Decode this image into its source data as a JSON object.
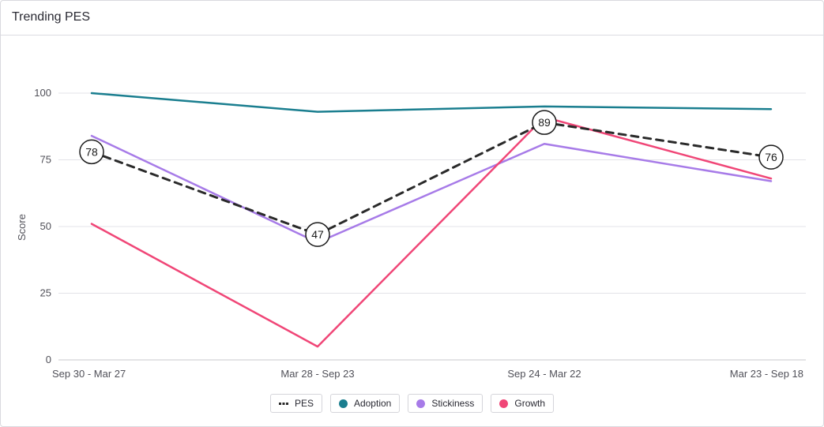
{
  "header": {
    "title": "Trending PES"
  },
  "chart_data": {
    "type": "line",
    "ylabel": "Score",
    "ylim": [
      0,
      100
    ],
    "yticks": [
      0,
      25,
      50,
      75,
      100
    ],
    "categories": [
      "Sep 30 - Mar 27",
      "Mar 28 - Sep 23",
      "Sep 24 - Mar 22",
      "Mar 23 - Sep 18"
    ],
    "series": [
      {
        "name": "PES",
        "values": [
          78,
          47,
          89,
          76
        ],
        "color": "#2a2a2a",
        "style": "dashed",
        "labeled": true
      },
      {
        "name": "Adoption",
        "values": [
          100,
          93,
          95,
          94
        ],
        "color": "#1a7e8f",
        "style": "solid"
      },
      {
        "name": "Stickiness",
        "values": [
          84,
          44,
          81,
          67
        ],
        "color": "#a77be8",
        "style": "solid"
      },
      {
        "name": "Growth",
        "values": [
          51,
          5,
          91,
          68
        ],
        "color": "#f04677",
        "style": "solid"
      }
    ],
    "grid": true,
    "legend": "bottom-center"
  }
}
